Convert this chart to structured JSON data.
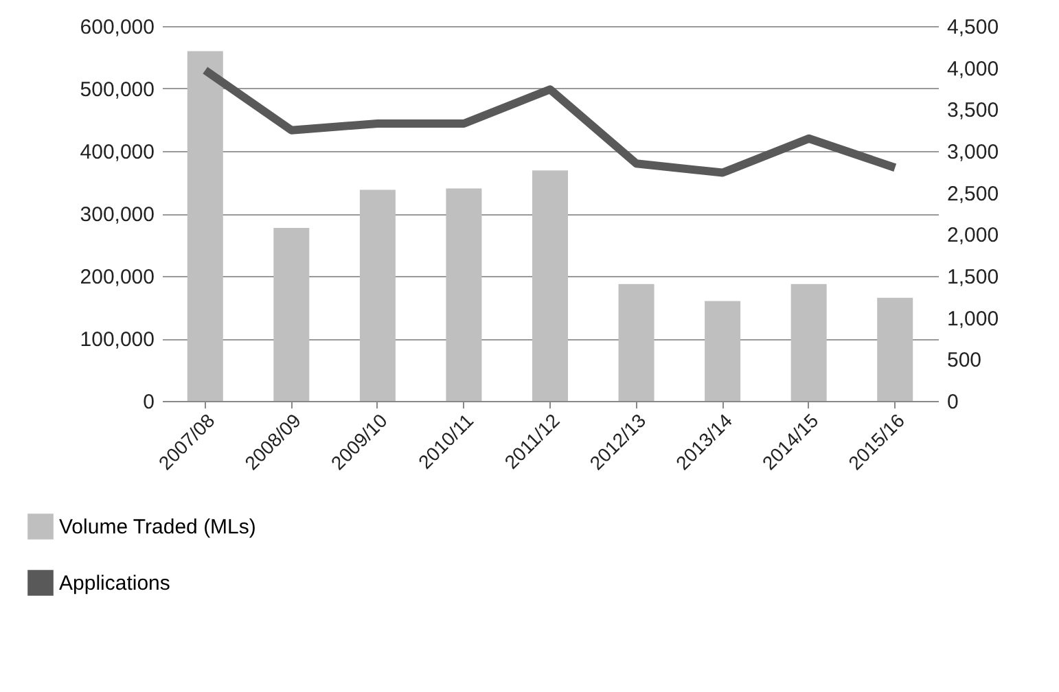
{
  "chart_data": {
    "type": "bar",
    "categories": [
      "2007/08",
      "2008/09",
      "2009/10",
      "2010/11",
      "2011/12",
      "2012/13",
      "2013/14",
      "2014/15",
      "2015/16"
    ],
    "series": [
      {
        "name": "Volume Traded (MLs)",
        "color": "#bfbfbf",
        "values": [
          560000,
          277000,
          338000,
          340000,
          369000,
          187000,
          160000,
          187000,
          165000
        ]
      },
      {
        "name": "Applications",
        "type": "line",
        "axis": "y2",
        "color": "#595959",
        "values": [
          3970,
          3250,
          3330,
          3330,
          3740,
          2850,
          2740,
          3150,
          2800
        ]
      }
    ],
    "ylim": [
      0,
      600000
    ],
    "yticks": [
      0,
      {
        "value": 100000,
        "label": "100,000"
      },
      {
        "value": 200000,
        "label": "200,000"
      },
      {
        "value": 300000,
        "label": "300,000"
      },
      {
        "value": 400000,
        "label": "400,000"
      },
      {
        "value": 500000,
        "label": "500,000"
      },
      {
        "value": 600000,
        "label": "600,000"
      }
    ],
    "y2lim": [
      0,
      4500
    ],
    "y2ticks": [
      0,
      500,
      {
        "value": 1000,
        "label": "1,000"
      },
      {
        "value": 1500,
        "label": "1,500"
      },
      {
        "value": 2000,
        "label": "2,000"
      },
      {
        "value": 2500,
        "label": "2,500"
      },
      {
        "value": 3000,
        "label": "3,000"
      },
      {
        "value": 3500,
        "label": "3,500"
      },
      {
        "value": 4000,
        "label": "4,000"
      },
      {
        "value": 4500,
        "label": "4,500"
      }
    ],
    "grid": "y",
    "legend": "bottom left",
    "marker": "none",
    "line_style": "solid"
  }
}
